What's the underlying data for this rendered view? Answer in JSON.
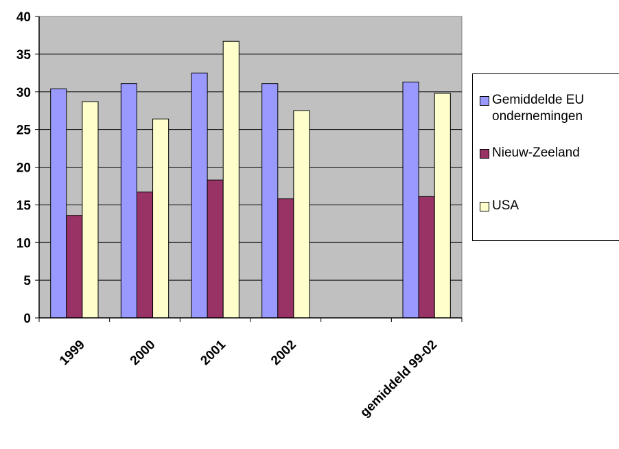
{
  "chart_data": {
    "type": "bar",
    "categories": [
      "1999",
      "2000",
      "2001",
      "2002",
      "",
      "gemiddeld 99-02"
    ],
    "series": [
      {
        "name": "Gemiddelde EU ondernemingen",
        "values": [
          30.4,
          31.1,
          32.5,
          31.1,
          null,
          31.3
        ],
        "color": "#9999ff"
      },
      {
        "name": "Nieuw-Zeeland",
        "values": [
          13.6,
          16.7,
          18.3,
          15.8,
          null,
          16.1
        ],
        "color": "#993366"
      },
      {
        "name": "USA",
        "values": [
          28.7,
          26.4,
          36.7,
          27.5,
          null,
          29.8
        ],
        "color": "#ffffcc"
      }
    ],
    "yticks": [
      "0",
      "5",
      "10",
      "15",
      "20",
      "25",
      "30",
      "35",
      "40"
    ],
    "ylim": [
      0,
      40
    ],
    "title": "",
    "xlabel": "",
    "ylabel": "",
    "grid": true,
    "legend_position": "right",
    "plot_background": "#c0c0c0"
  }
}
